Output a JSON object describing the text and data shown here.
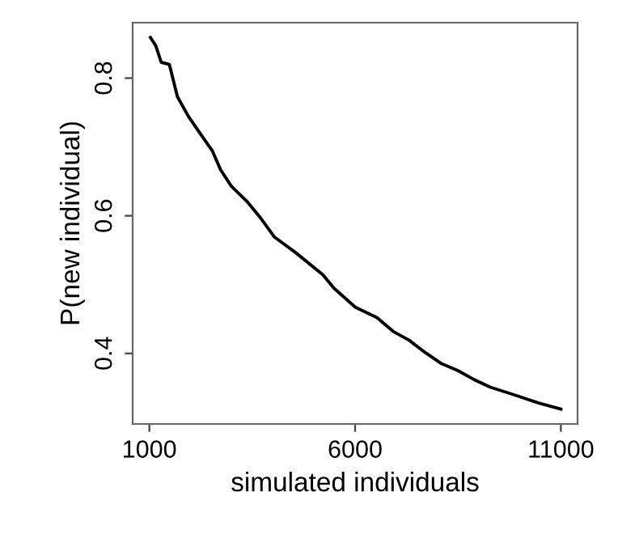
{
  "chart_data": {
    "type": "line",
    "xlabel": "simulated individuals",
    "ylabel": "P(new individual)",
    "x": [
      1026,
      1157,
      1288,
      1485,
      1682,
      1944,
      2206,
      2533,
      2730,
      2992,
      3385,
      3713,
      4041,
      4565,
      5220,
      5482,
      6006,
      6531,
      6924,
      7317,
      7710,
      8103,
      8497,
      8890,
      9283,
      9807,
      10462,
      11000
    ],
    "series": [
      {
        "color": "#000000",
        "values": [
          0.859,
          0.847,
          0.823,
          0.82,
          0.773,
          0.745,
          0.722,
          0.694,
          0.667,
          0.643,
          0.62,
          0.596,
          0.569,
          0.546,
          0.514,
          0.495,
          0.467,
          0.452,
          0.432,
          0.419,
          0.401,
          0.385,
          0.375,
          0.362,
          0.351,
          0.341,
          0.328,
          0.319
        ]
      }
    ],
    "xlim": [
      594,
      11406
    ],
    "ylim": [
      0.2975,
      0.8806
    ],
    "xticks": [
      1000,
      6000,
      11000
    ],
    "yticks": [
      0.4,
      0.6,
      0.8
    ],
    "grid": false,
    "legend": false,
    "marker": "none",
    "line_style": "solid"
  }
}
